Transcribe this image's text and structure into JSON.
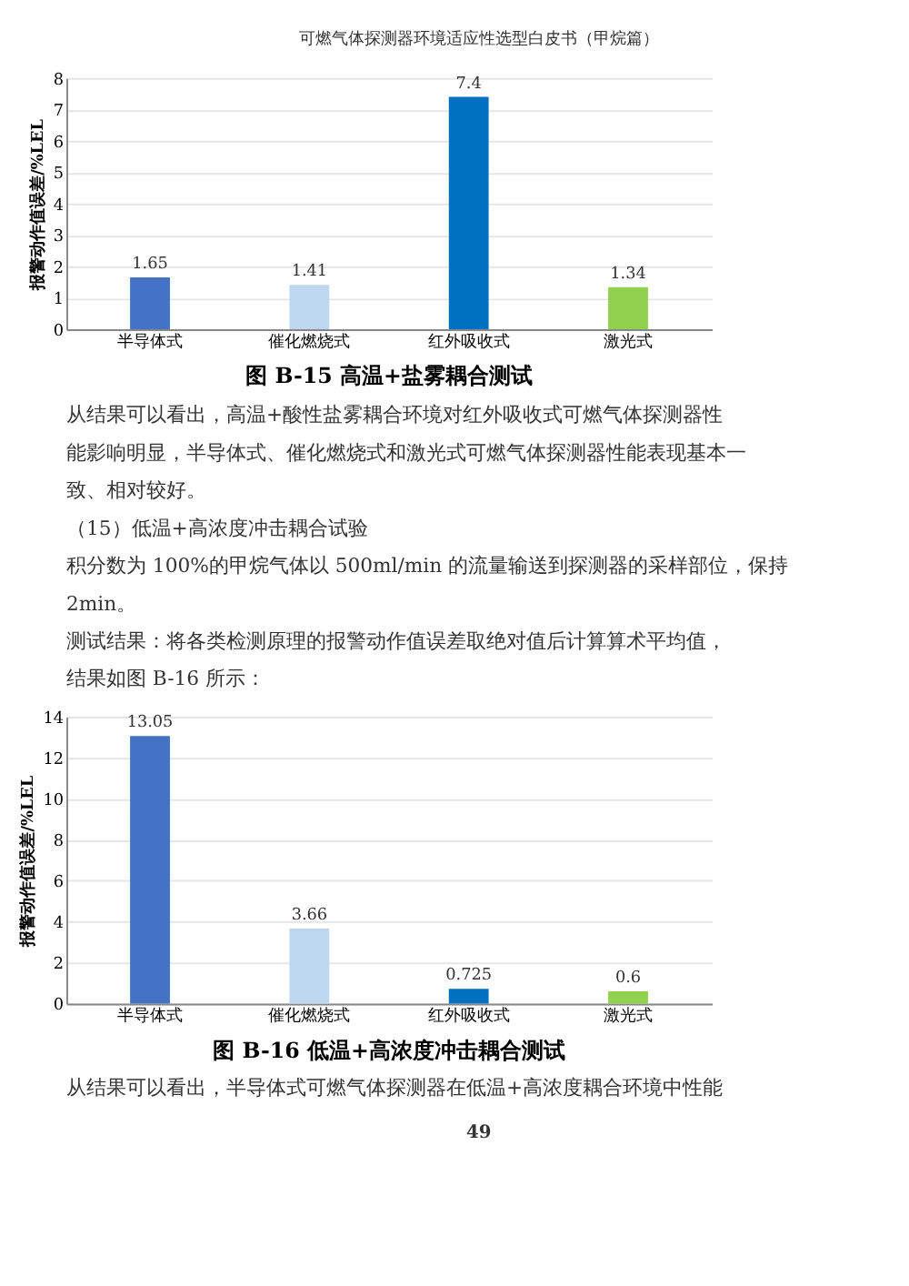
{
  "chart_data": [
    {
      "type": "bar",
      "title": "图 B-15 高温+盐雾耦合测试",
      "ylabel": "报警动作值误差/%LEL",
      "categories": [
        "半导体式",
        "催化燃烧式",
        "红外吸收式",
        "激光式"
      ],
      "values": [
        1.65,
        1.41,
        7.4,
        1.34
      ],
      "colors": [
        "#4472c4",
        "#bdd7ee",
        "#0070c0",
        "#92d050"
      ],
      "ylim": [
        0,
        8
      ],
      "yticks": [
        0,
        1,
        2,
        3,
        4,
        5,
        6,
        7,
        8
      ],
      "grid": "y",
      "data_labels": true,
      "annotations": [
        "可燃气体探测器环境适应性选型白皮书（甲烷篇）",
        "从结果可以看出，高温+酸性盐雾耦合环境对红外吸收式可燃气体探测器性",
        "能影响明显，半导体式、催化燃烧式和激光式可燃气体探测器性能表现基本一",
        "致、相对较好。",
        "（15）低温+高浓度冲击耦合试验",
        "积分数为 100%的甲烷气体以 500ml/min 的流量输送到探测器的采样部位，保持",
        "2min。",
        "测试结果：将各类检测原理的报警动作值误差取绝对值后计算算术平均值，",
        "结果如图 B-16 所示："
      ]
    },
    {
      "type": "bar",
      "title": "图 B-16 低温+高浓度冲击耦合测试",
      "ylabel": "报警动作值误差/%LEL",
      "categories": [
        "半导体式",
        "催化燃烧式",
        "红外吸收式",
        "激光式"
      ],
      "values": [
        13.05,
        3.66,
        0.725,
        0.6
      ],
      "colors": [
        "#4472c4",
        "#bdd7ee",
        "#0070c0",
        "#92d050"
      ],
      "ylim": [
        0,
        14
      ],
      "yticks": [
        0,
        2,
        4,
        6,
        8,
        10,
        12,
        14
      ],
      "grid": "y",
      "data_labels": true,
      "annotations": [
        "从结果可以看出，半导体式可燃气体探测器在低温+高浓度耦合环境中性能",
        "49"
      ]
    }
  ]
}
